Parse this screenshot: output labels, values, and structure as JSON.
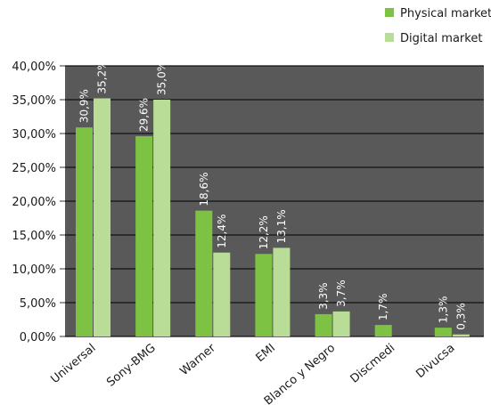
{
  "chart_data": {
    "type": "bar",
    "categories": [
      "Universal",
      "Sony-BMG",
      "Warner",
      "EMI",
      "Blanco y Negro",
      "Discmedi",
      "Divucsa"
    ],
    "series": [
      {
        "name": "Physical market",
        "color": "#7dc242",
        "values": [
          30.9,
          29.6,
          18.6,
          12.2,
          3.3,
          1.7,
          1.3
        ],
        "labels": [
          "30,9%",
          "29,6%",
          "18,6%",
          "12,2%",
          "3,3%",
          "1,7%",
          "1,3%"
        ]
      },
      {
        "name": "Digital market",
        "color": "#b9dc97",
        "values": [
          35.2,
          35.0,
          12.4,
          13.1,
          3.7,
          0,
          0.3
        ],
        "labels": [
          "35,2%",
          "35,0%",
          "12,4%",
          "13,1%",
          "3,7%",
          "",
          "0,3%"
        ]
      }
    ],
    "yticks": [
      "0,00%",
      "5,00%",
      "10,00%",
      "15,00%",
      "20,00%",
      "25,00%",
      "30,00%",
      "35,00%",
      "40,00%"
    ],
    "ylim": [
      0,
      40
    ],
    "grid": true,
    "legend_position": "top-right",
    "plot_background": "#595959",
    "title": "",
    "xlabel": "",
    "ylabel": ""
  }
}
